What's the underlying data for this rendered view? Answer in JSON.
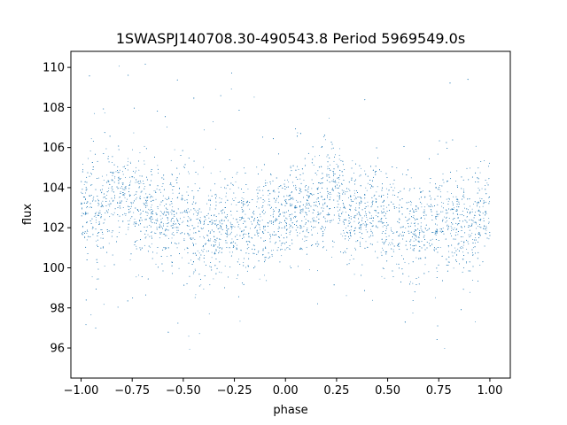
{
  "chart_data": {
    "type": "scatter",
    "title": "1SWASPJ140708.30-490543.8 Period 5969549.0s",
    "xlabel": "phase",
    "ylabel": "flux",
    "xlim": [
      -1.05,
      1.1
    ],
    "ylim": [
      94.5,
      110.8
    ],
    "x_ticks": [
      -1.0,
      -0.75,
      -0.5,
      -0.25,
      0.0,
      0.25,
      0.5,
      0.75,
      1.0
    ],
    "x_tick_labels": [
      "−1.00",
      "−0.75",
      "−0.50",
      "−0.25",
      "0.00",
      "0.25",
      "0.50",
      "0.75",
      "1.00"
    ],
    "y_ticks": [
      96,
      98,
      100,
      102,
      104,
      106,
      108,
      110
    ],
    "y_tick_labels": [
      "96",
      "98",
      "100",
      "102",
      "104",
      "106",
      "108",
      "110"
    ],
    "marker_color": "#1f77b4",
    "grid": false,
    "legend": "none",
    "series": [
      {
        "phase_range": [
          -1.0,
          1.0
        ],
        "mean_flux": 102.6,
        "flux_spread": 1.2,
        "flux_range": [
          95.2,
          110.2
        ],
        "points": [
          {
            "x": -0.98,
            "y": 102.8
          },
          {
            "x": -0.95,
            "y": 103.1
          },
          {
            "x": -0.91,
            "y": 102.4
          },
          {
            "x": -0.87,
            "y": 103.6
          },
          {
            "x": -0.83,
            "y": 103.9
          },
          {
            "x": -0.78,
            "y": 103.4
          },
          {
            "x": -0.72,
            "y": 103.0
          },
          {
            "x": -0.66,
            "y": 102.7
          },
          {
            "x": -0.6,
            "y": 102.4
          },
          {
            "x": -0.53,
            "y": 102.6
          },
          {
            "x": -0.47,
            "y": 102.2
          },
          {
            "x": -0.41,
            "y": 101.8
          },
          {
            "x": -0.35,
            "y": 101.5
          },
          {
            "x": -0.3,
            "y": 101.9
          },
          {
            "x": -0.25,
            "y": 102.3
          },
          {
            "x": -0.19,
            "y": 102.0
          },
          {
            "x": -0.13,
            "y": 102.2
          },
          {
            "x": -0.07,
            "y": 102.5
          },
          {
            "x": -0.02,
            "y": 102.4
          },
          {
            "x": 0.02,
            "y": 102.8
          },
          {
            "x": 0.07,
            "y": 103.1
          },
          {
            "x": 0.13,
            "y": 103.0
          },
          {
            "x": 0.19,
            "y": 103.5
          },
          {
            "x": 0.25,
            "y": 103.8
          },
          {
            "x": 0.29,
            "y": 103.0
          },
          {
            "x": 0.35,
            "y": 102.8
          },
          {
            "x": 0.41,
            "y": 102.9
          },
          {
            "x": 0.47,
            "y": 102.6
          },
          {
            "x": 0.53,
            "y": 102.3
          },
          {
            "x": 0.59,
            "y": 101.9
          },
          {
            "x": 0.65,
            "y": 101.6
          },
          {
            "x": 0.71,
            "y": 102.0
          },
          {
            "x": 0.75,
            "y": 102.4
          },
          {
            "x": 0.81,
            "y": 102.1
          },
          {
            "x": 0.87,
            "y": 102.0
          },
          {
            "x": 0.93,
            "y": 102.6
          },
          {
            "x": 0.98,
            "y": 102.8
          }
        ]
      }
    ]
  }
}
